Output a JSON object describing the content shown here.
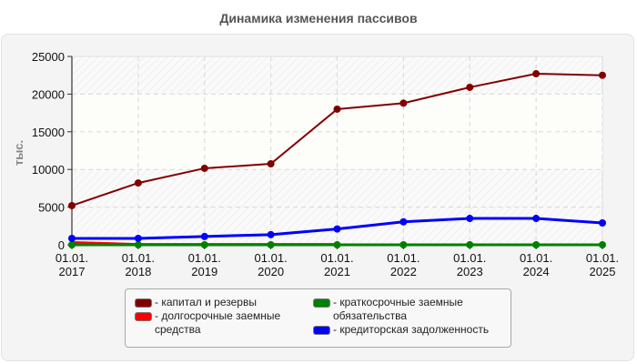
{
  "chart_title": "Динамика изменения пассивов",
  "chart_data": {
    "type": "line",
    "title": "Динамика изменения пассивов",
    "xlabel": "",
    "ylabel": "тыс.",
    "ylim": [
      0,
      25000
    ],
    "yticks": [
      "0",
      "5000",
      "10000",
      "15000",
      "20000",
      "25000"
    ],
    "categories": [
      "01.01.2017",
      "01.01.2018",
      "01.01.2019",
      "01.01.2020",
      "01.01.2021",
      "01.01.2022",
      "01.01.2023",
      "01.01.2024",
      "01.01.2025"
    ],
    "x_tick_labels": [
      [
        "01.01.",
        "2017"
      ],
      [
        "01.01.",
        "2018"
      ],
      [
        "01.01.",
        "2019"
      ],
      [
        "01.01.",
        "2020"
      ],
      [
        "01.01.",
        "2021"
      ],
      [
        "01.01.",
        "2022"
      ],
      [
        "01.01.",
        "2023"
      ],
      [
        "01.01.",
        "2024"
      ],
      [
        "01.01.",
        "2025"
      ]
    ],
    "series": [
      {
        "name": "капитал и резервы",
        "color": "#800000",
        "values": [
          5200,
          8200,
          10150,
          10750,
          18000,
          18800,
          20900,
          22700,
          22500
        ]
      },
      {
        "name": "долгосрочные заемные средства",
        "color": "#ff0000",
        "values": [
          300,
          50,
          50,
          50,
          50,
          null,
          null,
          null,
          null
        ]
      },
      {
        "name": "краткосрочные заемные обязательства",
        "color": "#008000",
        "values": [
          0,
          0,
          0,
          0,
          0,
          0,
          0,
          0,
          0
        ]
      },
      {
        "name": "кредиторская задолженность",
        "color": "#0000ff",
        "values": [
          850,
          850,
          1100,
          1350,
          2100,
          3050,
          3500,
          3500,
          2900
        ]
      }
    ],
    "grid": true,
    "legend_position": "bottom"
  },
  "legend": {
    "items": [
      {
        "label": "капитал и резервы",
        "color": "#800000"
      },
      {
        "label": "долгосрочные заемные средства",
        "color": "#ff0000"
      },
      {
        "label": "краткосрочные заемные обязательства",
        "color": "#008000"
      },
      {
        "label": "кредиторская задолженность",
        "color": "#0000ff"
      }
    ]
  }
}
